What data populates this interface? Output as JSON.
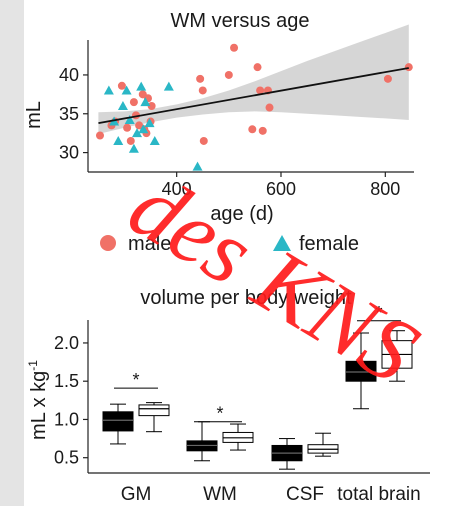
{
  "chart_data": [
    {
      "type": "scatter",
      "title": "WM versus age",
      "xlabel": "age (d)",
      "ylabel": "mL",
      "xlim": [
        230,
        855
      ],
      "ylim": [
        27.5,
        44.5
      ],
      "xticks": [
        400,
        600,
        800
      ],
      "yticks": [
        30,
        35,
        40
      ],
      "grid": false,
      "colors": {
        "male": "#f07167",
        "female": "#2ab7c6",
        "trend": "#111111",
        "band": "#c8c8c8"
      },
      "legend": {
        "placement": "bottom",
        "entries": [
          {
            "label": "male",
            "marker": "circle"
          },
          {
            "label": "female",
            "marker": "triangle"
          }
        ]
      },
      "series": [
        {
          "name": "male",
          "marker": "circle",
          "points": [
            [
              253,
              32.2
            ],
            [
              275,
              33.5
            ],
            [
              282,
              34.0
            ],
            [
              295,
              38.6
            ],
            [
              305,
              33.2
            ],
            [
              312,
              31.5
            ],
            [
              318,
              36.5
            ],
            [
              322,
              34.8
            ],
            [
              328,
              33.5
            ],
            [
              335,
              37.5
            ],
            [
              338,
              33.0
            ],
            [
              342,
              32.5
            ],
            [
              345,
              37.0
            ],
            [
              350,
              34.0
            ],
            [
              352,
              36.0
            ],
            [
              445,
              39.5
            ],
            [
              450,
              38.0
            ],
            [
              452,
              31.5
            ],
            [
              500,
              40.0
            ],
            [
              510,
              43.5
            ],
            [
              545,
              33.0
            ],
            [
              555,
              41.0
            ],
            [
              560,
              38.0
            ],
            [
              565,
              32.8
            ],
            [
              575,
              38.0
            ],
            [
              578,
              35.8
            ],
            [
              805,
              39.5
            ],
            [
              845,
              41.0
            ]
          ]
        },
        {
          "name": "female",
          "marker": "triangle",
          "points": [
            [
              270,
              38.0
            ],
            [
              280,
              34.0
            ],
            [
              288,
              31.5
            ],
            [
              297,
              36.0
            ],
            [
              304,
              38.0
            ],
            [
              310,
              34.2
            ],
            [
              318,
              30.5
            ],
            [
              324,
              32.5
            ],
            [
              332,
              38.5
            ],
            [
              336,
              33.0
            ],
            [
              340,
              36.5
            ],
            [
              348,
              33.8
            ],
            [
              358,
              31.5
            ],
            [
              385,
              38.5
            ],
            [
              440,
              28.2
            ]
          ]
        }
      ],
      "trendline": {
        "x": [
          250,
          845
        ],
        "y": [
          33.8,
          40.9
        ]
      },
      "confidence_band": {
        "x": [
          250,
          300,
          350,
          400,
          450,
          500,
          550,
          600,
          650,
          700,
          750,
          800,
          845
        ],
        "low": [
          32.4,
          33.2,
          33.9,
          34.5,
          34.9,
          35.2,
          35.3,
          35.2,
          35.0,
          34.8,
          34.6,
          34.4,
          34.2
        ],
        "high": [
          35.2,
          35.3,
          35.6,
          36.2,
          37.0,
          38.0,
          39.2,
          40.5,
          41.8,
          43.0,
          44.2,
          45.4,
          46.5
        ]
      }
    },
    {
      "type": "box",
      "title": "volume per body weight",
      "xlabel": "",
      "ylabel": "mL x kg",
      "ylabel_superscript": "-1",
      "ylim": [
        0.3,
        2.3
      ],
      "yticks": [
        0.5,
        1.0,
        1.5,
        2.0
      ],
      "ytick_labels": [
        "0.5",
        "1.0",
        "1.5",
        "2.0"
      ],
      "categories": [
        "GM",
        "WM",
        "CSF",
        "total brain"
      ],
      "colors": {
        "group1": "#000000",
        "group2": "#ffffff",
        "outline": "#000000"
      },
      "boxes": [
        {
          "category": "GM",
          "group": 1,
          "min": 0.68,
          "q1": 0.85,
          "median": 0.99,
          "q3": 1.1,
          "max": 1.2
        },
        {
          "category": "GM",
          "group": 2,
          "min": 0.84,
          "q1": 1.05,
          "median": 1.14,
          "q3": 1.19,
          "max": 1.22
        },
        {
          "category": "WM",
          "group": 1,
          "min": 0.46,
          "q1": 0.59,
          "median": 0.66,
          "q3": 0.72,
          "max": 0.97
        },
        {
          "category": "WM",
          "group": 2,
          "min": 0.6,
          "q1": 0.7,
          "median": 0.76,
          "q3": 0.83,
          "max": 0.94
        },
        {
          "category": "CSF",
          "group": 1,
          "min": 0.35,
          "q1": 0.46,
          "median": 0.56,
          "q3": 0.66,
          "max": 0.75
        },
        {
          "category": "CSF",
          "group": 2,
          "min": 0.52,
          "q1": 0.56,
          "median": 0.61,
          "q3": 0.67,
          "max": 0.82
        },
        {
          "category": "total brain",
          "group": 1,
          "min": 1.14,
          "q1": 1.5,
          "median": 1.62,
          "q3": 1.76,
          "max": 2.13
        },
        {
          "category": "total brain",
          "group": 2,
          "min": 1.5,
          "q1": 1.67,
          "median": 1.85,
          "q3": 2.03,
          "max": 2.16
        }
      ],
      "significance": [
        {
          "category": "GM",
          "y": 1.41,
          "label": "*"
        },
        {
          "category": "WM",
          "y": 0.97,
          "label": "*"
        },
        {
          "category": "total brain",
          "y": 2.29,
          "label": "*"
        }
      ]
    }
  ],
  "watermark": {
    "text": "des KNS",
    "color": "#ff1a1a"
  }
}
